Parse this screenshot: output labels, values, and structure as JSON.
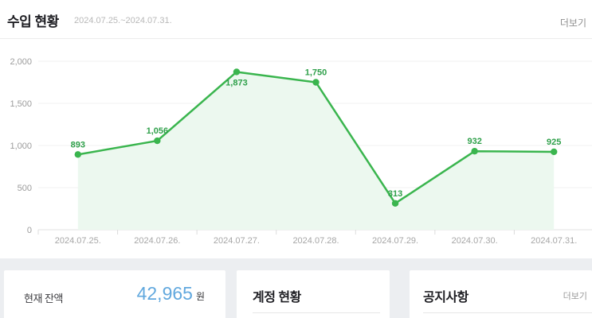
{
  "header": {
    "title": "수입 현황",
    "date_range": "2024.07.25.~2024.07.31.",
    "more_label": "더보기"
  },
  "chart_data": {
    "type": "line",
    "title": "수입 현황",
    "categories": [
      "2024.07.25.",
      "2024.07.26.",
      "2024.07.27.",
      "2024.07.28.",
      "2024.07.29.",
      "2024.07.30.",
      "2024.07.31."
    ],
    "series": [
      {
        "name": "수입",
        "values": [
          893,
          1056,
          1873,
          1750,
          313,
          932,
          925
        ]
      }
    ],
    "ylim": [
      0,
      2000
    ],
    "yticks": [
      0,
      500,
      1000,
      1500,
      2000
    ],
    "grid": true,
    "legend": "none",
    "label_positions": [
      "above",
      "above",
      "below",
      "above",
      "above",
      "above",
      "above"
    ],
    "colors": {
      "line": "#3ab54e",
      "marker": "#3ab54e",
      "area_fill": "#ecf8ef",
      "value_label": "#2fa04a",
      "gridline": "#f0f0f0",
      "axis_line": "#e1e1e1",
      "tick": "#dcdcdc"
    }
  },
  "cards": {
    "balance": {
      "label": "현재 잔액",
      "amount": "42,965",
      "unit": "원",
      "amount_color": "#61a8de"
    },
    "account": {
      "title": "계정 현황"
    },
    "notice": {
      "title": "공지사항",
      "more_label": "더보기"
    }
  }
}
